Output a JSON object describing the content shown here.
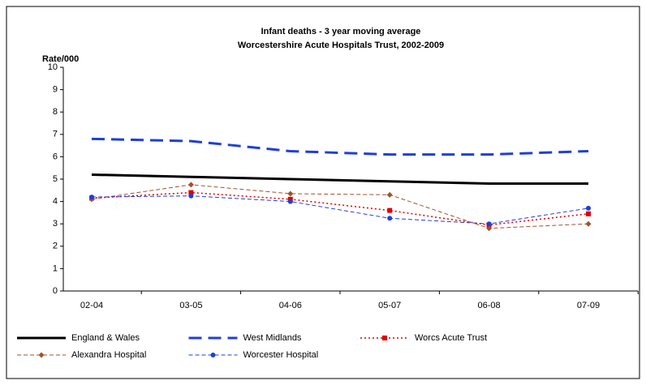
{
  "chart_data": {
    "type": "line",
    "title": "Infant deaths - 3 year moving average",
    "subtitle": "Worcestershire Acute Hospitals Trust, 2002-2009",
    "y_label": "Rate/000",
    "categories": [
      "02-04",
      "03-05",
      "04-06",
      "05-07",
      "06-08",
      "07-09"
    ],
    "series": [
      {
        "name": "England & Wales",
        "color": "#000000",
        "values": [
          5.2,
          5.1,
          5.0,
          4.9,
          4.8,
          4.8
        ]
      },
      {
        "name": "West Midlands",
        "color": "#1f3fd8",
        "values": [
          6.8,
          6.7,
          6.25,
          6.1,
          6.1,
          6.25
        ]
      },
      {
        "name": "Worcs Acute Trust",
        "color": "#e00000",
        "values": [
          4.15,
          4.4,
          4.1,
          3.6,
          2.95,
          3.45
        ]
      },
      {
        "name": "Alexandra Hospital",
        "color": "#a0522d",
        "values": [
          4.1,
          4.75,
          4.35,
          4.3,
          2.8,
          3.0
        ]
      },
      {
        "name": "Worcester Hospital",
        "color": "#1f3fd8",
        "values": [
          4.2,
          4.25,
          4.0,
          3.25,
          3.0,
          3.7
        ]
      }
    ],
    "ylim": [
      0,
      10
    ],
    "yticks": [
      0,
      1,
      2,
      3,
      4,
      5,
      6,
      7,
      8,
      9,
      10
    ],
    "grid": false,
    "legend": "bottom"
  }
}
